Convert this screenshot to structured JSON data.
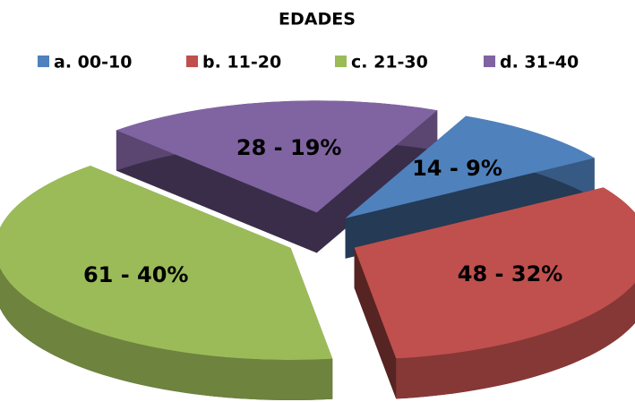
{
  "chart_data": {
    "type": "pie",
    "title": "EDADES",
    "categories": [
      "a. 00-10",
      "b. 11-20",
      "c. 21-30",
      "d. 31-40"
    ],
    "values": [
      14,
      48,
      61,
      28
    ],
    "value_labels": [
      "14 - 9%",
      "48 - 32%",
      "61 - 40%",
      "28 - 19%"
    ],
    "colors": [
      "#4f81bd",
      "#c0504d",
      "#9bbb59",
      "#8064a2"
    ],
    "legend": "top"
  }
}
